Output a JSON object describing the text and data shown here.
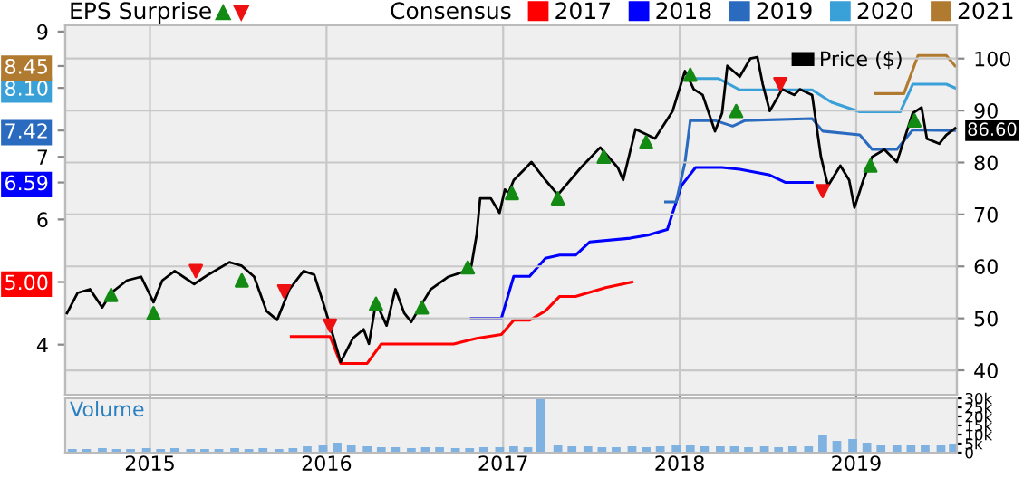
{
  "chart_data": [
    {
      "type": "line",
      "title": "EPS Surprise",
      "legend_title": "Consensus",
      "legend": "top",
      "grid": true,
      "tick_labels": "y",
      "xlim": [
        2014.52,
        2019.57
      ],
      "xticks": [
        2015,
        2016,
        2017,
        2018,
        2019
      ],
      "ylim": [
        3.2,
        9.1
      ],
      "yticks": [
        4,
        {
          "value": 5.0,
          "label": "5.00"
        },
        6,
        6.59,
        7,
        7.42,
        {
          "value": 8.1,
          "label": "8.10"
        },
        8.45,
        9
      ],
      "y2lim": [
        35.3,
        106.4
      ],
      "y2ticks": [
        40,
        50,
        60,
        70,
        80,
        90,
        100
      ],
      "series": [
        {
          "name": "2017",
          "color": "#ff0000",
          "x": [
            2015.8,
            2016.02,
            2016.08,
            2016.23,
            2016.31,
            2016.72,
            2016.85,
            2016.99,
            2017.06,
            2017.15,
            2017.24,
            2017.32,
            2017.41,
            2017.58,
            2017.73
          ],
          "values": [
            4.13,
            4.13,
            3.7,
            3.7,
            4.01,
            4.01,
            4.1,
            4.16,
            4.39,
            4.39,
            4.54,
            4.77,
            4.77,
            4.91,
            5.0
          ]
        },
        {
          "name": "2018",
          "color": "#0000ff",
          "x": [
            2016.82,
            2016.99,
            2017.06,
            2017.15,
            2017.24,
            2017.32,
            2017.41,
            2017.49,
            2017.72,
            2017.82,
            2017.93,
            2018.01,
            2018.09,
            2018.24,
            2018.34,
            2018.51,
            2018.6,
            2018.75
          ],
          "values": [
            4.42,
            4.42,
            5.09,
            5.09,
            5.38,
            5.43,
            5.43,
            5.64,
            5.7,
            5.75,
            5.84,
            6.54,
            6.83,
            6.83,
            6.8,
            6.71,
            6.59,
            6.59
          ]
        },
        {
          "name": "2019",
          "color": "#2a6bbf",
          "x": [
            2017.92,
            2017.98,
            2018.03,
            2018.06,
            2018.2,
            2018.3,
            2018.37,
            2018.75,
            2018.81,
            2019.02,
            2019.09,
            2019.23,
            2019.32,
            2019.56
          ],
          "values": [
            6.28,
            6.28,
            6.91,
            7.58,
            7.58,
            7.49,
            7.58,
            7.61,
            7.41,
            7.35,
            7.12,
            7.12,
            7.43,
            7.42
          ]
        },
        {
          "name": "2020",
          "color": "#3aa0d8",
          "x": [
            2018.08,
            2018.22,
            2018.34,
            2018.75,
            2018.86,
            2019.02,
            2019.25,
            2019.32,
            2019.51,
            2019.56
          ],
          "values": [
            8.25,
            8.25,
            8.07,
            8.07,
            7.87,
            7.72,
            7.72,
            8.16,
            8.16,
            8.1
          ]
        },
        {
          "name": "2021",
          "color": "#b07a30",
          "x": [
            2019.11,
            2019.27,
            2019.35,
            2019.51,
            2019.56
          ],
          "values": [
            8.01,
            8.01,
            8.62,
            8.62,
            8.45
          ]
        },
        {
          "name": "Price ($)",
          "color": "#000000",
          "axis": "y2",
          "x": [
            2014.53,
            2014.59,
            2014.66,
            2014.73,
            2014.78,
            2014.87,
            2014.95,
            2015.02,
            2015.07,
            2015.14,
            2015.25,
            2015.33,
            2015.45,
            2015.52,
            2015.59,
            2015.66,
            2015.72,
            2015.79,
            2015.87,
            2015.93,
            2015.98,
            2016.02,
            2016.08,
            2016.15,
            2016.21,
            2016.24,
            2016.28,
            2016.34,
            2016.39,
            2016.44,
            2016.48,
            2016.54,
            2016.59,
            2016.69,
            2016.79,
            2016.82,
            2016.85,
            2016.87,
            2016.93,
            2016.98,
            2017.01,
            2017.03,
            2017.06,
            2017.13,
            2017.16,
            2017.24,
            2017.31,
            2017.44,
            2017.55,
            2017.65,
            2017.68,
            2017.75,
            2017.86,
            2017.96,
            2018.03,
            2018.08,
            2018.13,
            2018.2,
            2018.24,
            2018.27,
            2018.34,
            2018.4,
            2018.44,
            2018.47,
            2018.51,
            2018.58,
            2018.65,
            2018.68,
            2018.75,
            2018.8,
            2018.84,
            2018.91,
            2018.96,
            2018.99,
            2019.04,
            2019.09,
            2019.16,
            2019.23,
            2019.32,
            2019.37,
            2019.4,
            2019.47,
            2019.51,
            2019.56
          ],
          "values": [
            51.0,
            54.9,
            55.6,
            52.1,
            54.9,
            57.3,
            58.0,
            53.1,
            57.3,
            59.1,
            56.6,
            58.4,
            60.8,
            60.1,
            58.0,
            51.4,
            49.7,
            55.6,
            59.1,
            58.4,
            53.1,
            48.6,
            41.6,
            46.2,
            47.9,
            45.1,
            53.1,
            48.6,
            55.6,
            51.0,
            49.3,
            52.8,
            55.6,
            58.0,
            59.1,
            60.1,
            66.1,
            73.1,
            73.1,
            70.3,
            74.8,
            74.1,
            76.6,
            79.0,
            80.1,
            76.6,
            73.8,
            79.0,
            82.9,
            79.0,
            76.6,
            86.4,
            84.6,
            89.9,
            97.6,
            94.1,
            93.0,
            86.0,
            89.5,
            98.6,
            96.5,
            100.0,
            100.3,
            95.1,
            89.9,
            94.1,
            93.0,
            94.1,
            93.0,
            81.1,
            75.5,
            79.4,
            76.6,
            71.3,
            76.6,
            81.1,
            82.5,
            80.1,
            89.5,
            90.6,
            84.6,
            83.6,
            85.3,
            86.6
          ],
          "value_labels": [
            null,
            null,
            null,
            null,
            null,
            null,
            null,
            null,
            null,
            null,
            null,
            null,
            null,
            null,
            null,
            null,
            null,
            null,
            null,
            null,
            null,
            null,
            null,
            null,
            null,
            null,
            null,
            null,
            null,
            null,
            null,
            null,
            null,
            null,
            null,
            null,
            null,
            null,
            null,
            null,
            null,
            null,
            null,
            null,
            null,
            null,
            null,
            null,
            null,
            null,
            null,
            null,
            null,
            null,
            null,
            null,
            null,
            null,
            null,
            null,
            null,
            null,
            null,
            null,
            null,
            null,
            null,
            null,
            null,
            null,
            null,
            null,
            null,
            null,
            null,
            null,
            null,
            null,
            null,
            null,
            null,
            null,
            null,
            "86.60"
          ]
        },
        {
          "type": "scatter",
          "marker": "triangle",
          "color": "#138a13",
          "axis": "y2",
          "x": [
            2014.78,
            2015.02,
            2015.52,
            2016.28,
            2016.54,
            2016.8,
            2017.05,
            2017.31,
            2017.57,
            2017.81,
            2018.06,
            2018.32,
            2019.08,
            2019.33
          ],
          "values": [
            54.5,
            51.0,
            57.3,
            52.8,
            52.1,
            59.8,
            74.1,
            73.1,
            81.1,
            83.9,
            96.9,
            89.9,
            79.4,
            88.1
          ]
        },
        {
          "type": "scatter",
          "marker": "triangle_down",
          "color": "#ee1111",
          "axis": "y2",
          "x": [
            2015.26,
            2015.76,
            2016.02,
            2018.57,
            2018.81
          ],
          "values": [
            59.1,
            55.2,
            48.6,
            95.1,
            74.5
          ]
        }
      ]
    },
    {
      "type": "bar",
      "title": "Volume",
      "color": "#7fb2e0",
      "grid": "x",
      "xlim": [
        2014.52,
        2019.57
      ],
      "xticks": [
        2015,
        2016,
        2017,
        2018,
        2019
      ],
      "ylim": [
        0,
        30000
      ],
      "yticks": [
        0,
        {
          "value": 5000,
          "label": "5k"
        },
        {
          "value": 10000,
          "label": "10k"
        },
        {
          "value": 15000,
          "label": "15k"
        },
        {
          "value": 20000,
          "label": "20k"
        },
        {
          "value": 25000,
          "label": "25k"
        },
        {
          "value": 30000,
          "label": "30k"
        }
      ],
      "x": [
        2014.56,
        2014.64,
        2014.73,
        2014.81,
        2014.89,
        2014.98,
        2015.06,
        2015.14,
        2015.23,
        2015.31,
        2015.39,
        2015.48,
        2015.56,
        2015.64,
        2015.73,
        2015.81,
        2015.89,
        2015.98,
        2016.06,
        2016.14,
        2016.23,
        2016.31,
        2016.39,
        2016.48,
        2016.56,
        2016.64,
        2016.73,
        2016.81,
        2016.89,
        2016.98,
        2017.06,
        2017.14,
        2017.21,
        2017.31,
        2017.39,
        2017.48,
        2017.56,
        2017.64,
        2017.73,
        2017.81,
        2017.89,
        2017.98,
        2018.06,
        2018.14,
        2018.23,
        2018.31,
        2018.39,
        2018.48,
        2018.56,
        2018.64,
        2018.73,
        2018.81,
        2018.89,
        2018.98,
        2019.06,
        2019.14,
        2019.23,
        2019.31,
        2019.39,
        2019.48,
        2019.55
      ],
      "values": [
        2000,
        2000,
        2500,
        2000,
        2000,
        2500,
        2000,
        2500,
        2000,
        2000,
        2000,
        2500,
        2000,
        2500,
        2000,
        2500,
        3500,
        4500,
        5500,
        4000,
        3500,
        3000,
        3000,
        2500,
        3000,
        3000,
        2500,
        2500,
        3000,
        3000,
        3500,
        3000,
        30000,
        4500,
        3500,
        3500,
        3000,
        3000,
        3500,
        3000,
        3500,
        4000,
        4000,
        3500,
        3500,
        3500,
        3000,
        3500,
        3000,
        3500,
        3500,
        9500,
        6500,
        7500,
        5500,
        4000,
        4000,
        4500,
        4500,
        4000,
        5000
      ]
    }
  ]
}
